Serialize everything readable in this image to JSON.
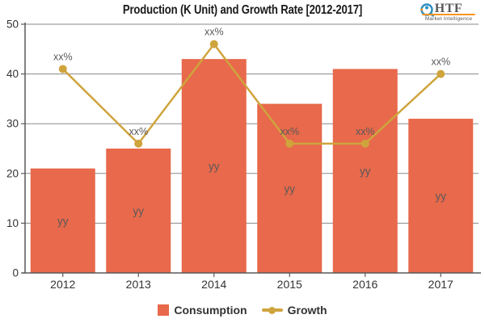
{
  "title": "Production (K Unit) and Growth Rate [2012-2017]",
  "logo": {
    "name": "HTF",
    "subtitle": "Market Intelligence"
  },
  "colors": {
    "bar": "#e8694b",
    "line": "#cfa43d",
    "grid": "#8a8a8a",
    "axis": "#595959",
    "tick_text": "#333333",
    "data_label": "#595959",
    "title_text": "#1a1a1a",
    "logo_blue": "#2b8fc4",
    "logo_orange": "#f7941e",
    "logo_gray": "#58595b"
  },
  "chart_data": {
    "type": "bar+line",
    "title": "Production (K Unit) and Growth Rate [2012-2017]",
    "categories": [
      "2012",
      "2013",
      "2014",
      "2015",
      "2016",
      "2017"
    ],
    "series": [
      {
        "name": "Consumption",
        "type": "bar",
        "values": [
          21,
          25,
          43,
          34,
          41,
          31
        ],
        "data_label": "yy"
      },
      {
        "name": "Growth",
        "type": "line",
        "values": [
          41,
          26,
          46,
          26,
          26,
          40
        ],
        "data_label": "xx%"
      }
    ],
    "xlabel": "",
    "ylabel": "",
    "ylim": [
      0,
      50
    ],
    "ytick_step": 10,
    "yticks": [
      0,
      10,
      20,
      30,
      40,
      50
    ],
    "grid": true,
    "legend_position": "bottom"
  },
  "legend": {
    "items": [
      {
        "label": "Consumption",
        "marker": "square"
      },
      {
        "label": "Growth",
        "marker": "line-dot"
      }
    ]
  }
}
